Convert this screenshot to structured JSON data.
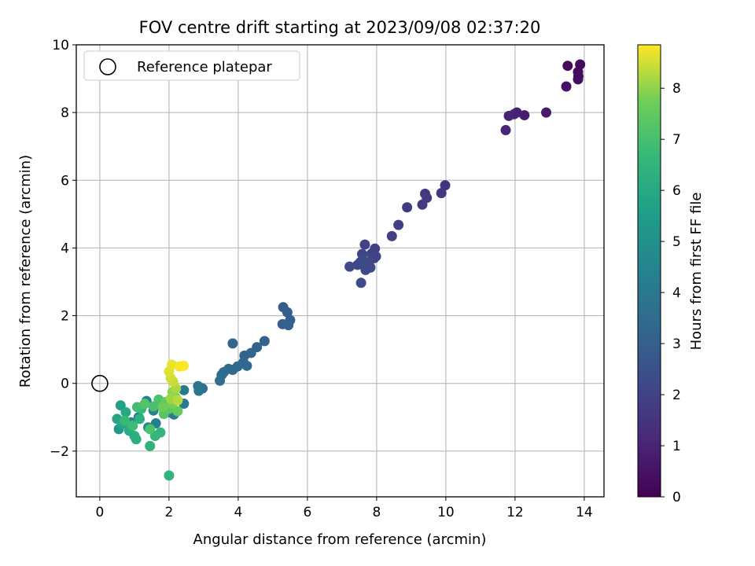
{
  "chart_data": {
    "type": "scatter",
    "title": "FOV centre drift starting at 2023/09/08 02:37:20",
    "xlabel": "Angular distance from reference (arcmin)",
    "ylabel": "Rotation from reference (arcmin)",
    "xlim": [
      -0.68,
      14.57
    ],
    "ylim": [
      -3.35,
      10.0
    ],
    "x_ticks": [
      0,
      2,
      4,
      6,
      8,
      10,
      12,
      14
    ],
    "y_ticks": [
      -2,
      0,
      2,
      4,
      6,
      8,
      10
    ],
    "grid": true,
    "legend": {
      "position": "top-left",
      "entries": [
        "Reference platepar"
      ]
    },
    "reference": {
      "x": 0,
      "y": 0
    },
    "colorbar": {
      "label": "Hours from first FF file",
      "range": [
        0,
        8.85
      ],
      "ticks": [
        0,
        1,
        2,
        3,
        4,
        5,
        6,
        7,
        8
      ],
      "colormap": "viridis"
    },
    "points": [
      [
        13.52,
        9.38,
        0.2
      ],
      [
        13.88,
        9.42,
        0.25
      ],
      [
        13.82,
        9.2,
        0.3
      ],
      [
        13.82,
        8.98,
        0.35
      ],
      [
        13.83,
        9.07,
        0.4
      ],
      [
        13.48,
        8.77,
        0.45
      ],
      [
        12.9,
        8.0,
        0.7
      ],
      [
        12.27,
        7.92,
        0.8
      ],
      [
        12.05,
        8.0,
        0.9
      ],
      [
        11.97,
        7.95,
        0.95
      ],
      [
        11.82,
        7.9,
        1.0
      ],
      [
        11.73,
        7.48,
        1.05
      ],
      [
        9.98,
        5.85,
        1.55
      ],
      [
        9.87,
        5.62,
        1.6
      ],
      [
        9.4,
        5.6,
        1.65
      ],
      [
        9.45,
        5.48,
        1.7
      ],
      [
        9.32,
        5.28,
        1.75
      ],
      [
        8.88,
        5.2,
        1.8
      ],
      [
        8.63,
        4.68,
        1.85
      ],
      [
        8.44,
        4.35,
        1.9
      ],
      [
        7.95,
        3.98,
        1.95
      ],
      [
        7.98,
        3.75,
        2.0
      ],
      [
        7.66,
        4.1,
        2.0
      ],
      [
        7.85,
        3.83,
        2.05
      ],
      [
        7.93,
        3.7,
        2.05
      ],
      [
        7.58,
        3.82,
        2.1
      ],
      [
        7.53,
        3.58,
        2.1
      ],
      [
        7.78,
        3.58,
        2.15
      ],
      [
        7.45,
        3.5,
        2.15
      ],
      [
        7.22,
        3.45,
        2.2
      ],
      [
        7.68,
        3.35,
        2.2
      ],
      [
        7.82,
        3.42,
        2.25
      ],
      [
        7.55,
        2.97,
        2.25
      ],
      [
        7.6,
        3.65,
        2.3
      ],
      [
        5.3,
        2.25,
        2.9
      ],
      [
        5.42,
        2.1,
        2.95
      ],
      [
        5.5,
        1.87,
        3.0
      ],
      [
        5.45,
        1.72,
        3.0
      ],
      [
        5.28,
        1.75,
        3.05
      ],
      [
        4.76,
        1.25,
        3.1
      ],
      [
        4.54,
        1.07,
        3.15
      ],
      [
        4.37,
        0.9,
        3.2
      ],
      [
        4.18,
        0.82,
        3.2
      ],
      [
        3.84,
        1.18,
        3.25
      ],
      [
        4.15,
        0.62,
        3.3
      ],
      [
        4.25,
        0.52,
        3.35
      ],
      [
        3.98,
        0.5,
        3.35
      ],
      [
        3.84,
        0.4,
        3.4
      ],
      [
        3.72,
        0.43,
        3.45
      ],
      [
        3.58,
        0.33,
        3.5
      ],
      [
        3.52,
        0.25,
        3.55
      ],
      [
        3.47,
        0.08,
        3.6
      ],
      [
        2.97,
        -0.15,
        3.8
      ],
      [
        2.84,
        -0.08,
        3.85
      ],
      [
        2.86,
        -0.22,
        3.9
      ],
      [
        2.43,
        -0.2,
        4.0
      ],
      [
        2.43,
        -0.6,
        4.05
      ],
      [
        2.14,
        -0.92,
        4.15
      ],
      [
        1.99,
        -0.85,
        4.2
      ],
      [
        1.62,
        -1.18,
        4.3
      ],
      [
        1.55,
        -0.8,
        4.35
      ],
      [
        1.35,
        -0.52,
        4.4
      ],
      [
        1.4,
        -1.3,
        4.45
      ],
      [
        1.12,
        -1.0,
        4.5
      ],
      [
        0.9,
        -1.15,
        4.6
      ],
      [
        0.55,
        -1.35,
        5.3
      ],
      [
        0.6,
        -0.65,
        5.6
      ],
      [
        0.5,
        -1.05,
        5.8
      ],
      [
        0.65,
        -1.2,
        5.9
      ],
      [
        0.75,
        -0.85,
        6.0
      ],
      [
        0.85,
        -1.4,
        6.1
      ],
      [
        1.0,
        -1.55,
        6.2
      ],
      [
        1.05,
        -1.65,
        6.3
      ],
      [
        1.15,
        -1.05,
        6.3
      ],
      [
        1.45,
        -1.85,
        6.4
      ],
      [
        2.0,
        -2.72,
        6.5
      ],
      [
        1.75,
        -1.45,
        6.5
      ],
      [
        1.6,
        -1.55,
        6.6
      ],
      [
        1.2,
        -0.75,
        6.7
      ],
      [
        0.72,
        -1.1,
        6.7
      ],
      [
        0.95,
        -1.25,
        6.8
      ],
      [
        1.08,
        -0.7,
        6.9
      ],
      [
        1.55,
        -0.68,
        7.0
      ],
      [
        1.7,
        -0.48,
        7.1
      ],
      [
        1.45,
        -1.35,
        7.1
      ],
      [
        1.3,
        -0.6,
        7.2
      ],
      [
        1.85,
        -0.9,
        7.3
      ],
      [
        2.0,
        -0.75,
        7.4
      ],
      [
        1.9,
        -0.55,
        7.5
      ],
      [
        2.25,
        -0.82,
        7.6
      ],
      [
        1.82,
        -0.7,
        7.7
      ],
      [
        2.1,
        -0.6,
        7.8
      ],
      [
        2.18,
        -0.4,
        7.9
      ],
      [
        2.1,
        -0.25,
        8.0
      ],
      [
        2.05,
        -0.45,
        8.1
      ],
      [
        2.2,
        -0.15,
        8.2
      ],
      [
        2.25,
        -0.5,
        8.3
      ],
      [
        2.12,
        0.05,
        8.4
      ],
      [
        2.05,
        0.15,
        8.5
      ],
      [
        2.0,
        0.35,
        8.6
      ],
      [
        2.08,
        0.55,
        8.7
      ],
      [
        2.3,
        0.5,
        8.8
      ],
      [
        2.42,
        0.52,
        8.85
      ]
    ]
  }
}
